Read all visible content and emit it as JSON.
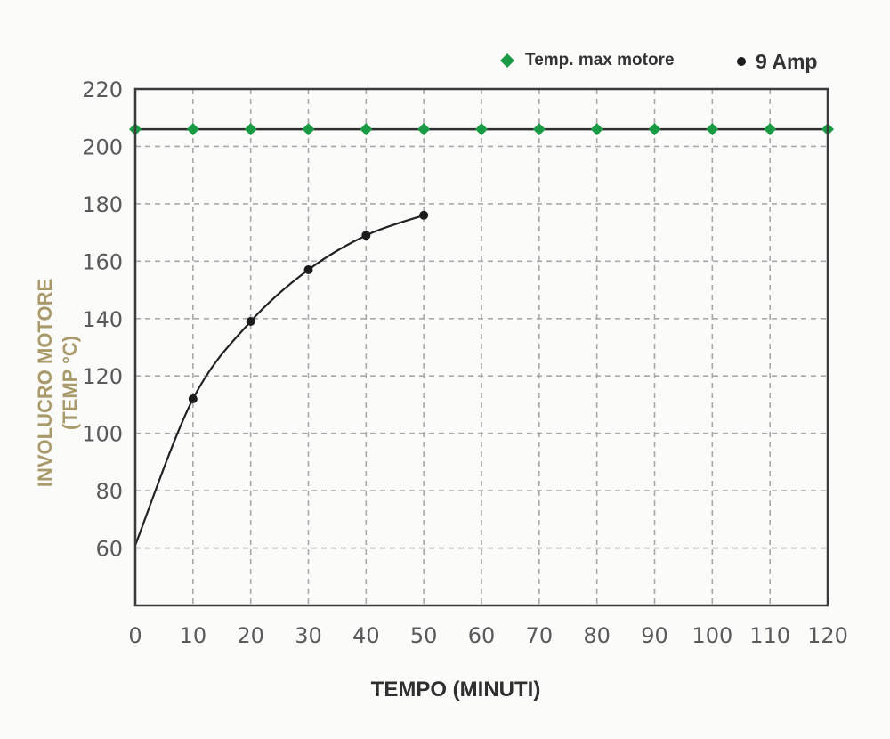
{
  "chart_data": {
    "type": "line",
    "xlabel": "TEMPO (MINUTI)",
    "ylabel_line1": "INVOLUCRO MOTORE",
    "ylabel_line2": "(TEMP °C)",
    "xlim": [
      0,
      120
    ],
    "ylim": [
      40,
      220
    ],
    "x_ticks": [
      "0",
      "10",
      "20",
      "30",
      "40",
      "50",
      "60",
      "70",
      "80",
      "90",
      "100",
      "110",
      "120"
    ],
    "y_ticks": [
      "60",
      "80",
      "100",
      "120",
      "140",
      "160",
      "180",
      "200",
      "220"
    ],
    "grid": true,
    "legend_position": "top-right",
    "series": [
      {
        "name": "Temp. max motore",
        "color": "#1a9a44",
        "marker": "diamond",
        "x": [
          0,
          10,
          20,
          30,
          40,
          50,
          60,
          70,
          80,
          90,
          100,
          110,
          120
        ],
        "y": [
          206,
          206,
          206,
          206,
          206,
          206,
          206,
          206,
          206,
          206,
          206,
          206,
          206
        ]
      },
      {
        "name": "9 Amp",
        "color": "#1c1c1c",
        "marker": "circle",
        "curve_start": [
          0,
          61
        ],
        "x": [
          10,
          20,
          30,
          40,
          50
        ],
        "y": [
          112,
          139,
          157,
          169,
          176
        ]
      }
    ],
    "colors": {
      "axis_label": "#a89a6a",
      "axis": "#3a3a3a",
      "grid": "#a9a9a9"
    }
  }
}
